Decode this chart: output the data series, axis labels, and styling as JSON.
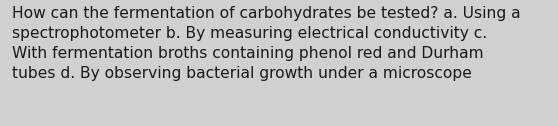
{
  "lines": [
    "How can the fermentation of carbohydrates be tested? a. Using a",
    "spectrophotometer b. By measuring electrical conductivity c.",
    "With fermentation broths containing phenol red and Durham",
    "tubes d. By observing bacterial growth under a microscope"
  ],
  "background_color": "#d0d0d0",
  "text_color": "#1a1a1a",
  "font_size": 11.2,
  "fig_width": 5.58,
  "fig_height": 1.26,
  "dpi": 100
}
